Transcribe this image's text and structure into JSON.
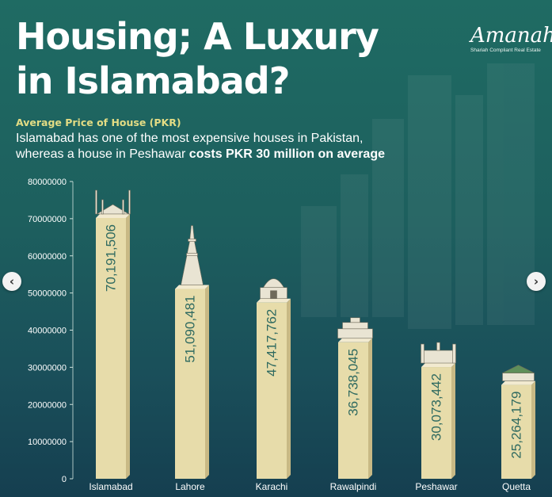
{
  "header": {
    "title_line1": "Housing; A Luxury",
    "title_line2": "in Islamabad?",
    "subtitle": "Average Price of House (PKR)",
    "description_line1": "Islamabad has one of the most expensive houses in Pakistan,",
    "description_line2_plain": "whereas a house in Peshawar ",
    "description_line2_bold": "costs PKR 30 million on average"
  },
  "logo": {
    "word": "Amanah",
    "tagline": "Shariah Compliant Real Estate"
  },
  "carousel": {
    "prev_glyph": "‹",
    "next_glyph": "›"
  },
  "colors": {
    "bar_front": "#e7dcaa",
    "bar_side": "#c8b985",
    "bar_top": "#f2ead0",
    "label_text": "#2f6a60",
    "axis": "#cfe3dd",
    "subtitle": "#e3dc84"
  },
  "chart_data": {
    "type": "bar",
    "categories": [
      "Islamabad",
      "Lahore",
      "Karachi",
      "Rawalpindi",
      "Peshawar",
      "Quetta"
    ],
    "values": [
      70191506,
      51090481,
      47417762,
      36738045,
      30073442,
      25264179
    ],
    "value_labels": [
      "70,191,506",
      "51,090,481",
      "47,417,762",
      "36,738,045",
      "30,073,442",
      "25,264,179"
    ],
    "landmark_icons": [
      "faisal-mosque-icon",
      "minar-e-pakistan-icon",
      "mazar-e-quaid-icon",
      "rawalpindi-landmark-icon",
      "peshawar-landmark-icon",
      "quetta-landmark-icon"
    ],
    "ylim": [
      0,
      80000000
    ],
    "yticks": [
      0,
      10000000,
      20000000,
      30000000,
      40000000,
      50000000,
      60000000,
      70000000,
      80000000
    ],
    "ytick_labels": [
      "0",
      "10000000",
      "20000000",
      "30000000",
      "40000000",
      "50000000",
      "60000000",
      "70000000",
      "80000000"
    ],
    "grid": false,
    "legend": "none"
  }
}
